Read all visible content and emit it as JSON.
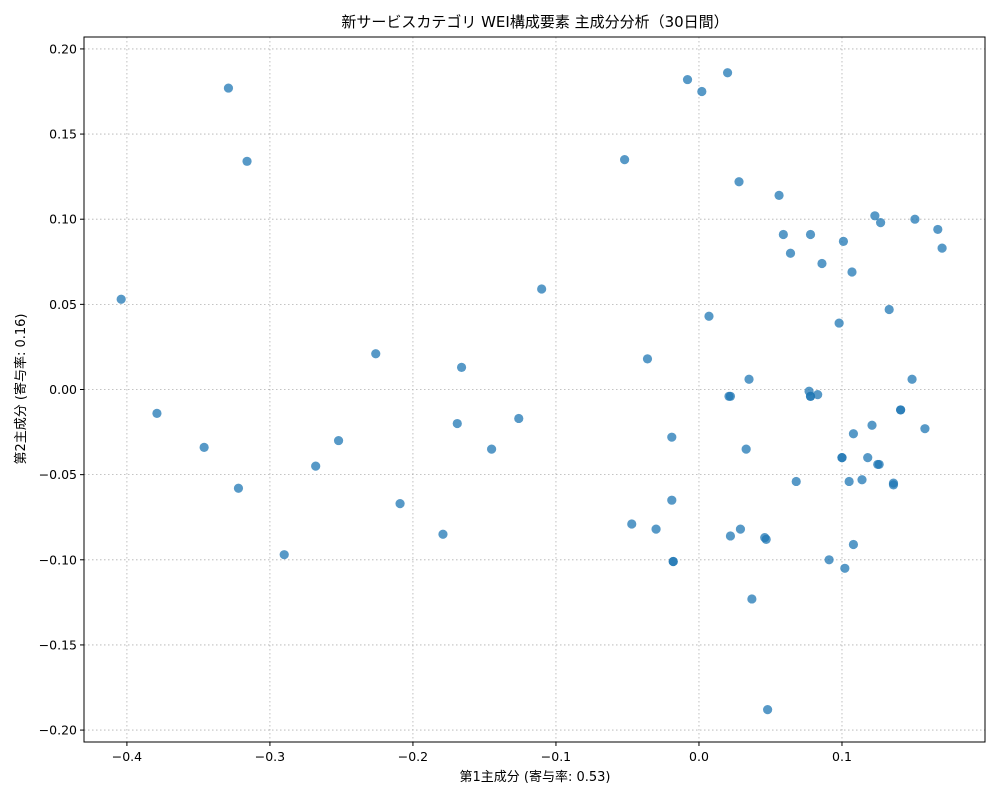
{
  "chart_data": {
    "type": "scatter",
    "title": "新サービスカテゴリ WEI構成要素 主成分分析（30日間）",
    "xlabel": "第1主成分 (寄与率: 0.53)",
    "ylabel": "第2主成分 (寄与率: 0.16)",
    "xlim": [
      -0.43,
      0.2
    ],
    "ylim": [
      -0.207,
      0.207
    ],
    "xticks": [
      -0.4,
      -0.3,
      -0.2,
      -0.1,
      0.0,
      0.1
    ],
    "xtick_labels": [
      "−0.4",
      "−0.3",
      "−0.2",
      "−0.1",
      "0.0",
      "0.1"
    ],
    "yticks": [
      0.2,
      0.15,
      0.1,
      0.05,
      0.0,
      -0.05,
      -0.1,
      -0.15,
      -0.2
    ],
    "ytick_labels": [
      "0.20",
      "0.15",
      "0.10",
      "0.05",
      "0.00",
      "−0.05",
      "−0.10",
      "−0.15",
      "−0.20"
    ],
    "grid": true,
    "color": "#1f77b4",
    "points": [
      {
        "x": -0.404,
        "y": 0.053
      },
      {
        "x": -0.379,
        "y": -0.014
      },
      {
        "x": -0.346,
        "y": -0.034
      },
      {
        "x": -0.329,
        "y": 0.177
      },
      {
        "x": -0.322,
        "y": -0.058
      },
      {
        "x": -0.316,
        "y": 0.134
      },
      {
        "x": -0.29,
        "y": -0.097
      },
      {
        "x": -0.268,
        "y": -0.045
      },
      {
        "x": -0.252,
        "y": -0.03
      },
      {
        "x": -0.226,
        "y": 0.021
      },
      {
        "x": -0.209,
        "y": -0.067
      },
      {
        "x": -0.179,
        "y": -0.085
      },
      {
        "x": -0.169,
        "y": -0.02
      },
      {
        "x": -0.166,
        "y": 0.013
      },
      {
        "x": -0.145,
        "y": -0.035
      },
      {
        "x": -0.126,
        "y": -0.017
      },
      {
        "x": -0.11,
        "y": 0.059
      },
      {
        "x": -0.052,
        "y": 0.135
      },
      {
        "x": -0.047,
        "y": -0.079
      },
      {
        "x": -0.036,
        "y": 0.018
      },
      {
        "x": -0.03,
        "y": -0.082
      },
      {
        "x": -0.019,
        "y": -0.028
      },
      {
        "x": -0.019,
        "y": -0.065
      },
      {
        "x": -0.018,
        "y": -0.101
      },
      {
        "x": -0.018,
        "y": -0.101
      },
      {
        "x": -0.008,
        "y": 0.182
      },
      {
        "x": 0.002,
        "y": 0.175
      },
      {
        "x": 0.007,
        "y": 0.043
      },
      {
        "x": 0.02,
        "y": 0.186
      },
      {
        "x": 0.021,
        "y": -0.004
      },
      {
        "x": 0.022,
        "y": -0.004
      },
      {
        "x": 0.022,
        "y": -0.086
      },
      {
        "x": 0.028,
        "y": 0.122
      },
      {
        "x": 0.029,
        "y": -0.082
      },
      {
        "x": 0.033,
        "y": -0.035
      },
      {
        "x": 0.035,
        "y": 0.006
      },
      {
        "x": 0.037,
        "y": -0.123
      },
      {
        "x": 0.046,
        "y": -0.087
      },
      {
        "x": 0.047,
        "y": -0.088
      },
      {
        "x": 0.048,
        "y": -0.188
      },
      {
        "x": 0.056,
        "y": 0.114
      },
      {
        "x": 0.059,
        "y": 0.091
      },
      {
        "x": 0.064,
        "y": 0.08
      },
      {
        "x": 0.068,
        "y": -0.054
      },
      {
        "x": 0.077,
        "y": -0.001
      },
      {
        "x": 0.078,
        "y": -0.004
      },
      {
        "x": 0.078,
        "y": -0.004
      },
      {
        "x": 0.078,
        "y": 0.091
      },
      {
        "x": 0.083,
        "y": -0.003
      },
      {
        "x": 0.086,
        "y": 0.074
      },
      {
        "x": 0.091,
        "y": -0.1
      },
      {
        "x": 0.098,
        "y": 0.039
      },
      {
        "x": 0.1,
        "y": -0.04
      },
      {
        "x": 0.1,
        "y": -0.04
      },
      {
        "x": 0.101,
        "y": 0.087
      },
      {
        "x": 0.102,
        "y": -0.105
      },
      {
        "x": 0.105,
        "y": -0.054
      },
      {
        "x": 0.107,
        "y": 0.069
      },
      {
        "x": 0.108,
        "y": -0.026
      },
      {
        "x": 0.108,
        "y": -0.091
      },
      {
        "x": 0.114,
        "y": -0.053
      },
      {
        "x": 0.118,
        "y": -0.04
      },
      {
        "x": 0.121,
        "y": -0.021
      },
      {
        "x": 0.123,
        "y": 0.102
      },
      {
        "x": 0.125,
        "y": -0.044
      },
      {
        "x": 0.126,
        "y": -0.044
      },
      {
        "x": 0.127,
        "y": 0.098
      },
      {
        "x": 0.133,
        "y": 0.047
      },
      {
        "x": 0.136,
        "y": -0.055
      },
      {
        "x": 0.136,
        "y": -0.056
      },
      {
        "x": 0.141,
        "y": -0.012
      },
      {
        "x": 0.141,
        "y": -0.012
      },
      {
        "x": 0.149,
        "y": 0.006
      },
      {
        "x": 0.151,
        "y": 0.1
      },
      {
        "x": 0.158,
        "y": -0.023
      },
      {
        "x": 0.167,
        "y": 0.094
      },
      {
        "x": 0.17,
        "y": 0.083
      }
    ]
  }
}
